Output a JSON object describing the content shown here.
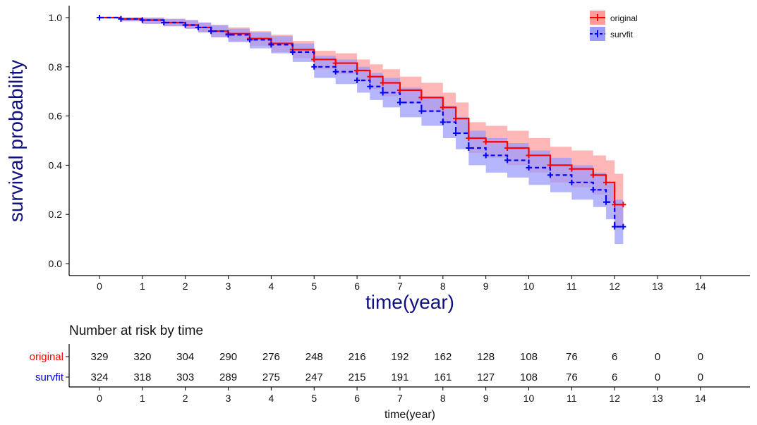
{
  "chart_data": [
    {
      "type": "line",
      "subtype": "kaplan-meier survival curve with confidence bands",
      "xlabel": "time(year)",
      "ylabel": "survival probability",
      "xlim": [
        0,
        15
      ],
      "ylim": [
        0,
        1.0
      ],
      "x_ticks": [
        0,
        1,
        2,
        3,
        4,
        5,
        6,
        7,
        8,
        9,
        10,
        11,
        12,
        13,
        14
      ],
      "y_ticks": [
        0.0,
        0.2,
        0.4,
        0.6,
        0.8,
        1.0
      ],
      "y_tick_labels": [
        "0.0",
        "0.2",
        "0.4",
        "0.6",
        "0.8",
        "1.0"
      ],
      "grid": false,
      "legend_position": "top-right",
      "series": [
        {
          "name": "original",
          "color": "#ff0000",
          "band_color": "#ff9a9a",
          "line_style": "solid",
          "x": [
            0,
            0.5,
            1,
            1.5,
            2,
            2.3,
            2.6,
            3,
            3.5,
            4,
            4.5,
            5,
            5.5,
            6,
            6.3,
            6.6,
            7,
            7.5,
            8,
            8.3,
            8.6,
            9,
            9.5,
            10,
            10.5,
            11,
            11.5,
            11.8,
            12,
            12.2
          ],
          "y": [
            1.0,
            0.995,
            0.99,
            0.98,
            0.97,
            0.96,
            0.945,
            0.935,
            0.915,
            0.895,
            0.87,
            0.83,
            0.815,
            0.785,
            0.76,
            0.735,
            0.705,
            0.675,
            0.635,
            0.59,
            0.51,
            0.495,
            0.47,
            0.44,
            0.4,
            0.385,
            0.36,
            0.33,
            0.24,
            0.24
          ],
          "lower": [
            1.0,
            0.985,
            0.975,
            0.965,
            0.955,
            0.94,
            0.92,
            0.905,
            0.885,
            0.86,
            0.835,
            0.79,
            0.77,
            0.74,
            0.71,
            0.68,
            0.65,
            0.615,
            0.575,
            0.53,
            0.45,
            0.43,
            0.4,
            0.37,
            0.33,
            0.31,
            0.28,
            0.25,
            0.15,
            0.15
          ],
          "upper": [
            1.0,
            1.0,
            1.0,
            0.995,
            0.99,
            0.98,
            0.97,
            0.96,
            0.945,
            0.93,
            0.905,
            0.865,
            0.855,
            0.83,
            0.81,
            0.79,
            0.76,
            0.735,
            0.695,
            0.655,
            0.575,
            0.56,
            0.54,
            0.51,
            0.475,
            0.46,
            0.44,
            0.42,
            0.365,
            0.365
          ]
        },
        {
          "name": "survfit",
          "color": "#0000ff",
          "band_color": "#9a9aff",
          "line_style": "dashed",
          "x": [
            0,
            0.5,
            1,
            1.5,
            2,
            2.3,
            2.6,
            3,
            3.5,
            4,
            4.5,
            5,
            5.5,
            6,
            6.3,
            6.6,
            7,
            7.5,
            8,
            8.3,
            8.6,
            9,
            9.5,
            10,
            10.5,
            11,
            11.5,
            11.8,
            12,
            12.2
          ],
          "y": [
            1.0,
            0.995,
            0.99,
            0.98,
            0.97,
            0.96,
            0.945,
            0.93,
            0.91,
            0.89,
            0.86,
            0.8,
            0.78,
            0.745,
            0.72,
            0.695,
            0.655,
            0.62,
            0.575,
            0.53,
            0.47,
            0.44,
            0.42,
            0.39,
            0.36,
            0.33,
            0.3,
            0.25,
            0.15,
            0.15
          ],
          "lower": [
            1.0,
            0.985,
            0.975,
            0.965,
            0.955,
            0.94,
            0.92,
            0.9,
            0.875,
            0.855,
            0.82,
            0.755,
            0.73,
            0.695,
            0.665,
            0.635,
            0.595,
            0.56,
            0.51,
            0.465,
            0.4,
            0.37,
            0.35,
            0.32,
            0.29,
            0.26,
            0.23,
            0.18,
            0.08,
            0.08
          ],
          "upper": [
            1.0,
            1.0,
            1.0,
            0.995,
            0.99,
            0.98,
            0.97,
            0.955,
            0.94,
            0.925,
            0.895,
            0.845,
            0.83,
            0.8,
            0.775,
            0.755,
            0.715,
            0.68,
            0.64,
            0.595,
            0.54,
            0.51,
            0.49,
            0.46,
            0.43,
            0.4,
            0.37,
            0.33,
            0.26,
            0.26
          ]
        }
      ]
    },
    {
      "type": "table",
      "title": "Number at risk by time",
      "xlabel": "time(year)",
      "x_ticks": [
        0,
        1,
        2,
        3,
        4,
        5,
        6,
        7,
        8,
        9,
        10,
        11,
        12,
        13,
        14
      ],
      "rows": [
        {
          "name": "original",
          "color": "#ff0000",
          "values": [
            329,
            320,
            304,
            290,
            276,
            248,
            216,
            192,
            162,
            128,
            108,
            76,
            6,
            0,
            0
          ]
        },
        {
          "name": "survfit",
          "color": "#0000ff",
          "values": [
            324,
            318,
            303,
            289,
            275,
            247,
            215,
            191,
            161,
            127,
            108,
            76,
            6,
            0,
            0
          ]
        }
      ]
    }
  ]
}
